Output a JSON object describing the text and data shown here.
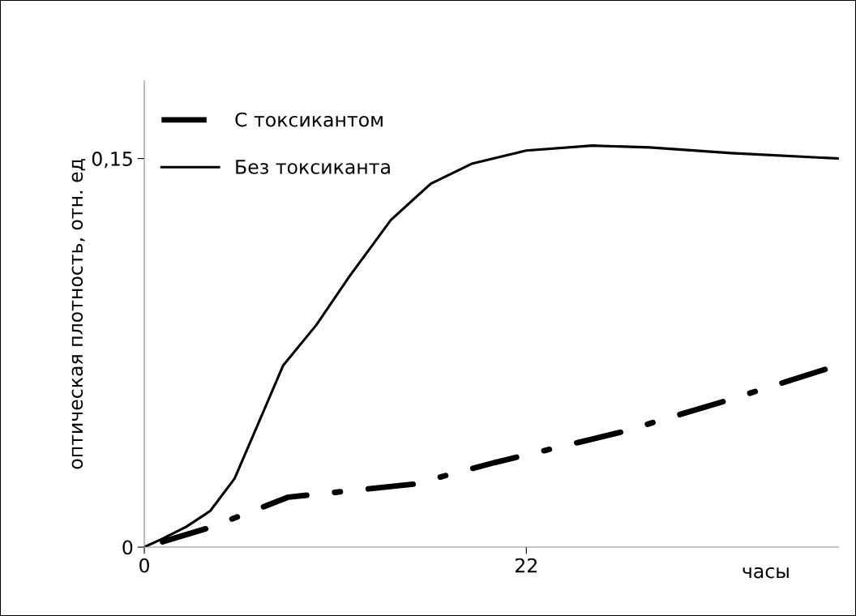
{
  "chart_data": {
    "type": "line",
    "xlabel": "часы",
    "ylabel": "оптическая плотность, отн. ед",
    "xlim": [
      0,
      40
    ],
    "xticks": [
      0,
      22
    ],
    "ylim": [
      0,
      0.18
    ],
    "yticks": [
      0,
      {
        "value": 0.15,
        "label": "0,15"
      }
    ],
    "grid": false,
    "legend": "top left",
    "marker": "none",
    "series": [
      {
        "name": "С токсикантом",
        "color": "#000000",
        "line_style": "dashdot",
        "x": [
          0,
          3.75,
          8.3,
          15.5,
          20.2,
          27.4,
          33.3,
          39.2
        ],
        "values": [
          0,
          0.0075,
          0.0193,
          0.0243,
          0.0327,
          0.0443,
          0.0561,
          0.0686
        ]
      },
      {
        "name": "Без токсиканта",
        "color": "#000000",
        "line_style": "solid",
        "x": [
          0,
          1.0,
          2.4,
          3.8,
          5.2,
          6.6,
          8.0,
          9.9,
          11.8,
          14.2,
          16.5,
          18.9,
          22,
          25.8,
          29.1,
          33.8,
          40
        ],
        "values": [
          0,
          0.0031,
          0.0078,
          0.014,
          0.0265,
          0.0483,
          0.0702,
          0.0857,
          0.1044,
          0.1263,
          0.1403,
          0.1481,
          0.1531,
          0.155,
          0.1543,
          0.1521,
          0.15
        ]
      }
    ]
  }
}
